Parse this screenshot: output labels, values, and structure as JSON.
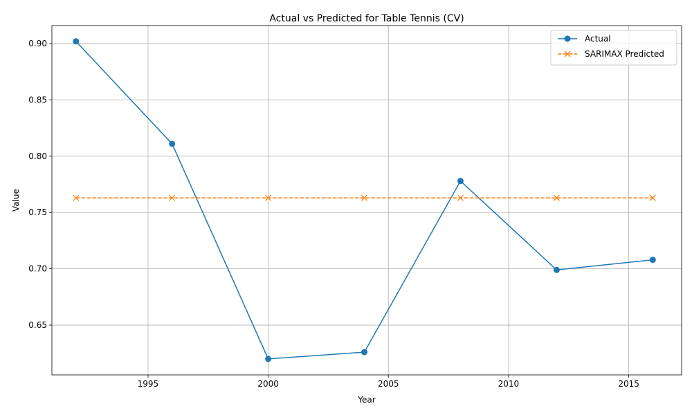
{
  "chart_data": {
    "type": "line",
    "title": "Actual vs Predicted for Table Tennis (CV)",
    "xlabel": "Year",
    "ylabel": "Value",
    "xlim": [
      1991,
      2017.2
    ],
    "ylim": [
      0.6058,
      0.916
    ],
    "xticks": [
      1995,
      2000,
      2005,
      2010,
      2015
    ],
    "yticks": [
      0.65,
      0.7,
      0.75,
      0.8,
      0.85,
      0.9
    ],
    "ytick_labels": [
      "0.65",
      "0.70",
      "0.75",
      "0.80",
      "0.85",
      "0.90"
    ],
    "grid": true,
    "legend_position": "top-right",
    "x": [
      1992,
      1996,
      2000,
      2004,
      2008,
      2012,
      2016
    ],
    "series": [
      {
        "name": "Actual",
        "values": [
          0.902,
          0.811,
          0.62,
          0.626,
          0.778,
          0.699,
          0.708
        ],
        "color": "#1f77b4",
        "linestyle": "solid",
        "marker": "circle"
      },
      {
        "name": "SARIMAX Predicted",
        "values": [
          0.763,
          0.763,
          0.763,
          0.763,
          0.763,
          0.763,
          0.763
        ],
        "color": "#ff7f0e",
        "linestyle": "dashed",
        "marker": "x"
      }
    ]
  }
}
